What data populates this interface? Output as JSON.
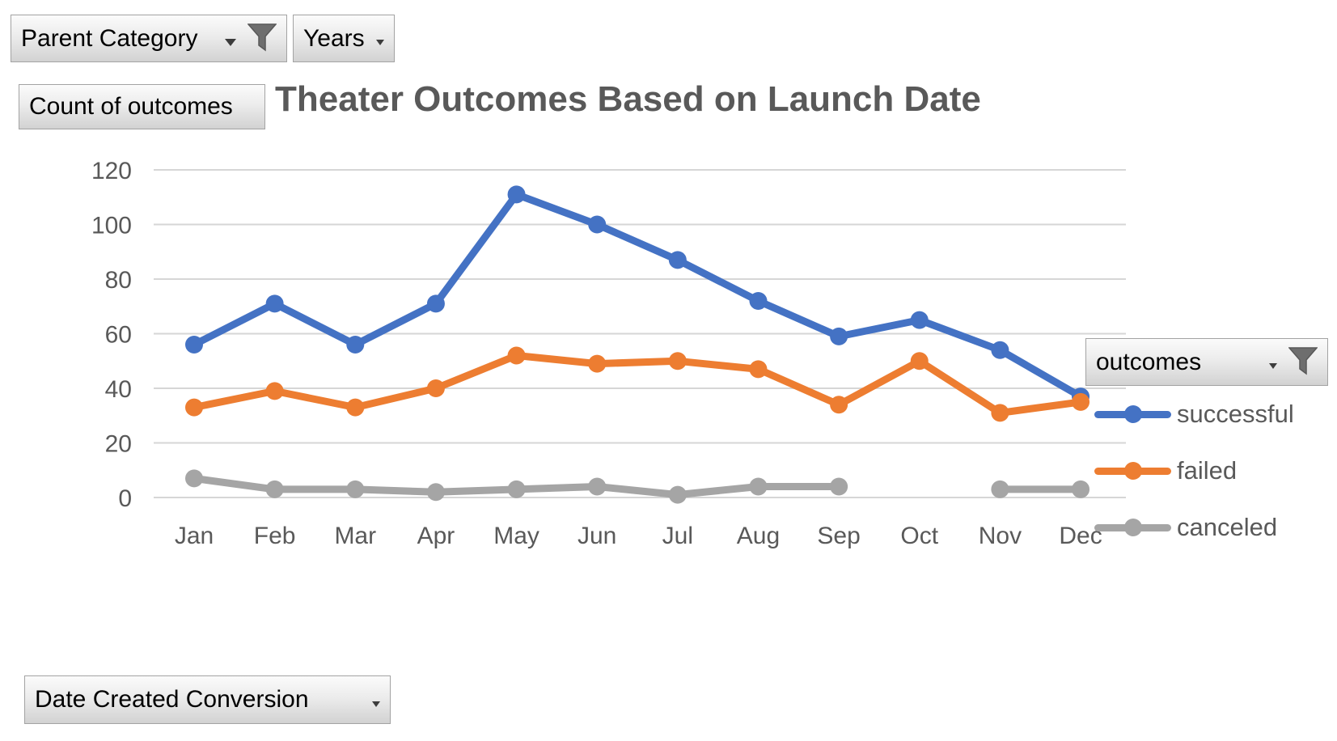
{
  "field_buttons": {
    "parent_category": {
      "label": "Parent Category",
      "has_dropdown": true,
      "has_filter": true
    },
    "years": {
      "label": "Years",
      "has_dropdown": true,
      "has_filter": false
    },
    "count_of_outcomes": {
      "label": "Count of outcomes",
      "has_dropdown": false,
      "has_filter": false
    },
    "outcomes": {
      "label": "outcomes",
      "has_dropdown": true,
      "has_filter": true
    },
    "date_created_conversion": {
      "label": "Date Created Conversion",
      "has_dropdown": true,
      "has_filter": false
    }
  },
  "chart_data": {
    "type": "line",
    "title": "Theater Outcomes Based on Launch Date",
    "categories": [
      "Jan",
      "Feb",
      "Mar",
      "Apr",
      "May",
      "Jun",
      "Jul",
      "Aug",
      "Sep",
      "Oct",
      "Nov",
      "Dec"
    ],
    "series": [
      {
        "name": "successful",
        "color": "#4472C4",
        "values": [
          56,
          71,
          56,
          71,
          111,
          100,
          87,
          72,
          59,
          65,
          54,
          37
        ]
      },
      {
        "name": "failed",
        "color": "#ED7D31",
        "values": [
          33,
          39,
          33,
          40,
          52,
          49,
          50,
          47,
          34,
          50,
          31,
          35
        ]
      },
      {
        "name": "canceled",
        "color": "#A5A5A5",
        "values": [
          7,
          3,
          3,
          2,
          3,
          4,
          1,
          4,
          4,
          null,
          3,
          3
        ]
      }
    ],
    "xlabel": "",
    "ylabel": "",
    "ylim": [
      0,
      120
    ],
    "yticks": [
      0,
      20,
      40,
      60,
      80,
      100,
      120
    ],
    "grid": true,
    "legend_position": "right",
    "axis_text_color": "#595959",
    "gridline_color": "#d6d6d6",
    "title_color": "#595959"
  }
}
